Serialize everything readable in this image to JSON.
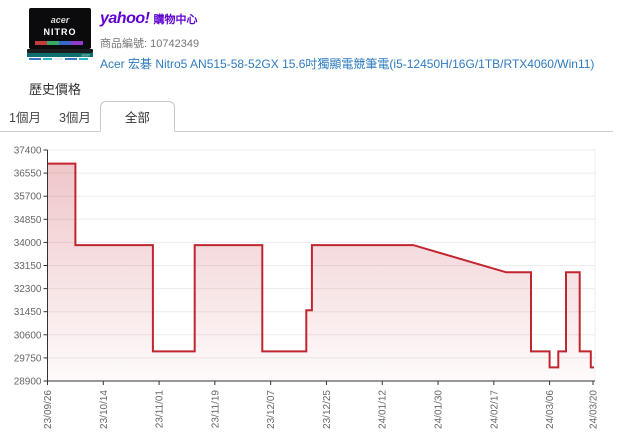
{
  "header": {
    "logo": "yahoo!",
    "logo_suffix": "購物中心",
    "logo_color": "#5f01d1",
    "sku_label": "商品編號:",
    "sku_value": "10742349",
    "product_title": "Acer 宏碁 Nitro5 AN515-58-52GX 15.6吋獨顯電競筆電(i5-12450H/16G/1TB/RTX4060/Win11)",
    "link_color": "#2e7bbf",
    "product_image": {
      "brand": "acer",
      "model": "NITRO"
    }
  },
  "price_history": {
    "title": "歷史價格",
    "tabs": [
      {
        "label": "1個月",
        "active": false
      },
      {
        "label": "3個月",
        "active": false
      },
      {
        "label": "全部",
        "active": true
      }
    ]
  },
  "chart_data": {
    "type": "area",
    "step": true,
    "title": "歷史價格 (全部)",
    "xlabel": "",
    "ylabel": "",
    "grid": true,
    "legend": "none",
    "ylim": [
      28900,
      37400
    ],
    "y_ticks": [
      28900,
      29750,
      30600,
      31450,
      32300,
      33150,
      34000,
      34850,
      35700,
      36550,
      37400
    ],
    "x_domain_days": 176,
    "x_ticks": [
      {
        "day": 0,
        "label": "23/09/26"
      },
      {
        "day": 18,
        "label": "23/10/14"
      },
      {
        "day": 36,
        "label": "23/11/01"
      },
      {
        "day": 54,
        "label": "23/11/19"
      },
      {
        "day": 72,
        "label": "23/12/07"
      },
      {
        "day": 90,
        "label": "23/12/25"
      },
      {
        "day": 108,
        "label": "24/01/12"
      },
      {
        "day": 126,
        "label": "24/01/30"
      },
      {
        "day": 144,
        "label": "24/02/17"
      },
      {
        "day": 162,
        "label": "24/03/06"
      },
      {
        "day": 176,
        "label": "24/03/20"
      }
    ],
    "line_color": "#c02530",
    "grid_color": "#ececec",
    "axis_color": "#333333",
    "tick_label_color": "#666666",
    "vertices": [
      {
        "d": 0,
        "date": "23/09/26",
        "p": 36900
      },
      {
        "d": 9,
        "date": "23/10/05",
        "p": 36900
      },
      {
        "d": 9,
        "date": "23/10/05",
        "p": 33900
      },
      {
        "d": 34,
        "date": "23/10/30",
        "p": 33900
      },
      {
        "d": 34,
        "date": "23/10/30",
        "p": 29990
      },
      {
        "d": 47.5,
        "date": "23/11/12",
        "p": 29990
      },
      {
        "d": 47.5,
        "date": "23/11/12",
        "p": 33900
      },
      {
        "d": 69.3,
        "date": "23/12/04",
        "p": 33900
      },
      {
        "d": 69.3,
        "date": "23/12/04",
        "p": 29990
      },
      {
        "d": 83.5,
        "date": "23/12/18",
        "p": 29990
      },
      {
        "d": 83.5,
        "date": "23/12/18",
        "p": 31500
      },
      {
        "d": 85.3,
        "date": "23/12/20",
        "p": 31500
      },
      {
        "d": 85.3,
        "date": "23/12/20",
        "p": 33900
      },
      {
        "d": 118,
        "date": "24/01/22",
        "p": 33900
      },
      {
        "d": 148,
        "date": "24/02/21",
        "p": 32900
      },
      {
        "d": 156,
        "date": "24/02/29",
        "p": 32900
      },
      {
        "d": 156,
        "date": "24/02/29",
        "p": 29990
      },
      {
        "d": 162,
        "date": "24/03/06",
        "p": 29990
      },
      {
        "d": 162,
        "date": "24/03/06",
        "p": 29400
      },
      {
        "d": 164.8,
        "date": "24/03/09",
        "p": 29400
      },
      {
        "d": 164.8,
        "date": "24/03/09",
        "p": 29990
      },
      {
        "d": 167.3,
        "date": "24/03/11",
        "p": 29990
      },
      {
        "d": 167.3,
        "date": "24/03/11",
        "p": 32900
      },
      {
        "d": 171.7,
        "date": "24/03/16",
        "p": 32900
      },
      {
        "d": 171.7,
        "date": "24/03/16",
        "p": 29990
      },
      {
        "d": 175.3,
        "date": "24/03/19",
        "p": 29990
      },
      {
        "d": 175.3,
        "date": "24/03/19",
        "p": 29400
      },
      {
        "d": 176.3,
        "date": "24/03/20",
        "p": 29400
      }
    ]
  }
}
